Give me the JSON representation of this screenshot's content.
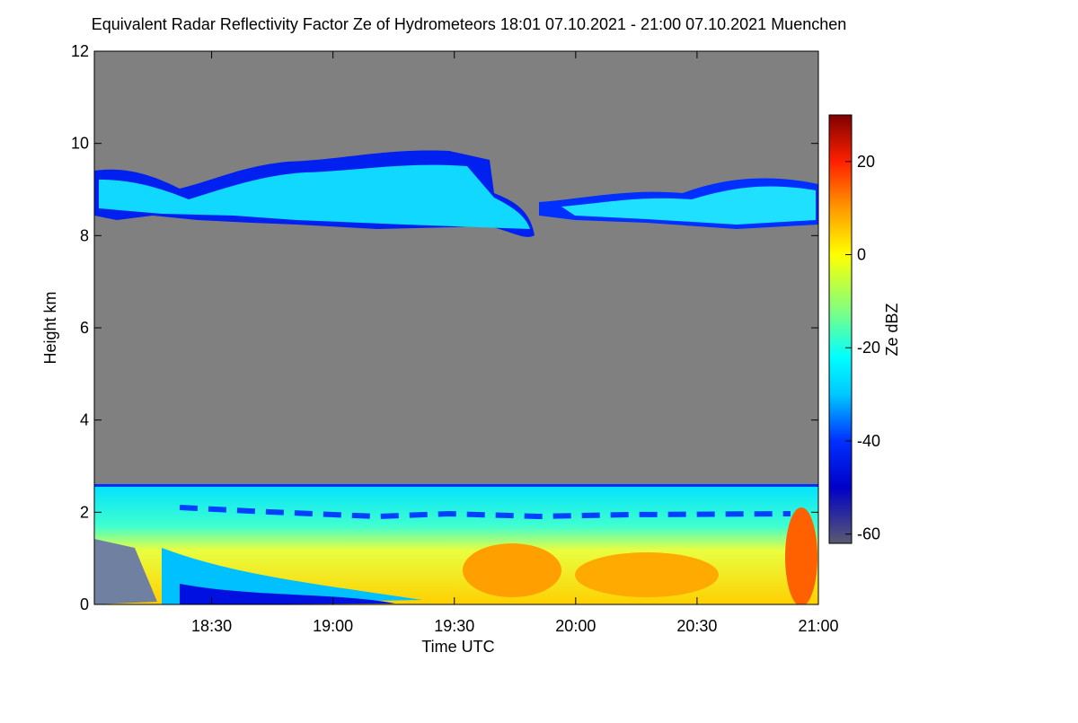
{
  "chart_data": {
    "type": "heatmap",
    "title": "Equivalent Radar Reflectivity Factor Ze of Hydrometeors   18:01 07.10.2021 - 21:00 07.10.2021 Muenchen",
    "x_label": "Time UTC",
    "y_label": "Height km",
    "colorbar_label": "Ze dBZ",
    "xlim": [
      1081,
      1260
    ],
    "xticks": [
      {
        "value": 1110,
        "label": "18:30"
      },
      {
        "value": 1140,
        "label": "19:00"
      },
      {
        "value": 1170,
        "label": "19:30"
      },
      {
        "value": 1200,
        "label": "20:00"
      },
      {
        "value": 1230,
        "label": "20:30"
      },
      {
        "value": 1260,
        "label": "21:00"
      }
    ],
    "ylim": [
      0,
      12
    ],
    "yticks": [
      0,
      2,
      4,
      6,
      8,
      10,
      12
    ],
    "colorbar_lim": [
      -62,
      30
    ],
    "colorbar_ticks": [
      -60,
      -40,
      -20,
      0,
      20
    ],
    "colormap": [
      {
        "value": -62,
        "color": "#5a5a70"
      },
      {
        "value": -50,
        "color": "#0000c8"
      },
      {
        "value": -40,
        "color": "#0030ff"
      },
      {
        "value": -30,
        "color": "#00c8ff"
      },
      {
        "value": -22,
        "color": "#00ffff"
      },
      {
        "value": -12,
        "color": "#80ff80"
      },
      {
        "value": 0,
        "color": "#ffff00"
      },
      {
        "value": 10,
        "color": "#ff9900"
      },
      {
        "value": 20,
        "color": "#ff2000"
      },
      {
        "value": 30,
        "color": "#800000"
      }
    ],
    "background_color": "#808080"
  }
}
